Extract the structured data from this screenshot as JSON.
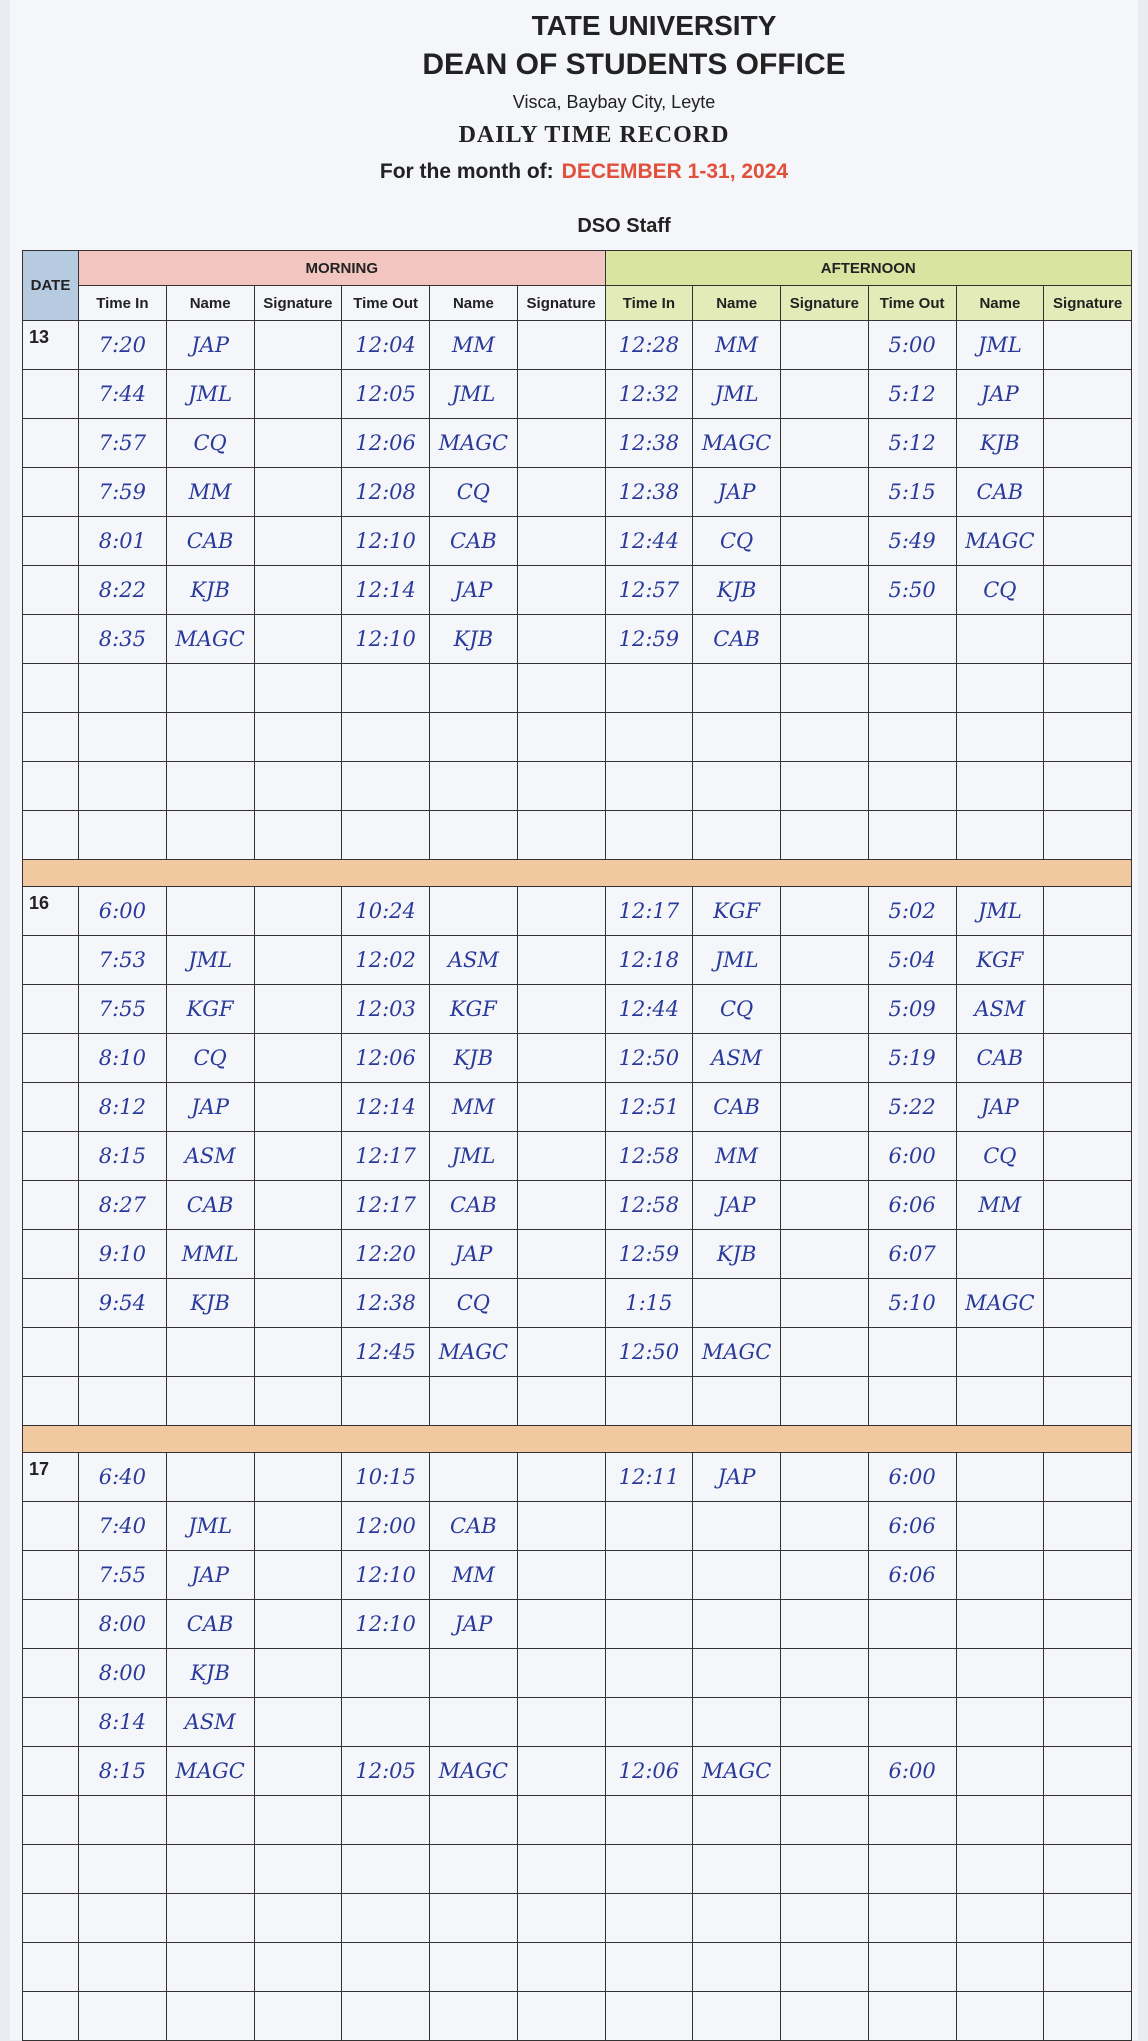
{
  "header": {
    "university": "TATE UNIVERSITY",
    "office": "DEAN OF STUDENTS OFFICE",
    "address": "Visca, Baybay City, Leyte",
    "title": "DAILY TIME RECORD",
    "month_label": "For the month of:",
    "month": "DECEMBER 1-31, 2024",
    "staff": "DSO Staff"
  },
  "table": {
    "date_header": "DATE",
    "morning": "MORNING",
    "afternoon": "AFTERNOON",
    "morning_columns": [
      "Time In",
      "Name",
      "Signature",
      "Time Out",
      "Name",
      "Signature"
    ],
    "afternoon_columns": [
      "Time In",
      "Name",
      "Signature",
      "Time Out",
      "Name",
      "Signature"
    ],
    "sections": [
      {
        "date": "13",
        "rows": [
          [
            "7:20",
            "JAP",
            "12:04",
            "MM",
            "12:28",
            "MM",
            "5:00",
            "JML"
          ],
          [
            "7:44",
            "JML",
            "12:05",
            "JML",
            "12:32",
            "JML",
            "5:12",
            "JAP"
          ],
          [
            "7:57",
            "CQ",
            "12:06",
            "MAGC",
            "12:38",
            "MAGC",
            "5:12",
            "KJB"
          ],
          [
            "7:59",
            "MM",
            "12:08",
            "CQ",
            "12:38",
            "JAP",
            "5:15",
            "CAB"
          ],
          [
            "8:01",
            "CAB",
            "12:10",
            "CAB",
            "12:44",
            "CQ",
            "5:49",
            "MAGC"
          ],
          [
            "8:22",
            "KJB",
            "12:14",
            "JAP",
            "12:57",
            "KJB",
            "5:50",
            "CQ"
          ],
          [
            "8:35",
            "MAGC",
            "12:10",
            "KJB",
            "12:59",
            "CAB",
            null,
            null
          ]
        ]
      },
      {
        "date": "16",
        "rows": [
          [
            "6:00",
            null,
            "10:24",
            null,
            "12:17",
            "KGF",
            "5:02",
            "JML"
          ],
          [
            "7:53",
            "JML",
            "12:02",
            "ASM",
            "12:18",
            "JML",
            "5:04",
            "KGF"
          ],
          [
            "7:55",
            "KGF",
            "12:03",
            "KGF",
            "12:44",
            "CQ",
            "5:09",
            "ASM"
          ],
          [
            "8:10",
            "CQ",
            "12:06",
            "KJB",
            "12:50",
            "ASM",
            "5:19",
            "CAB"
          ],
          [
            "8:12",
            "JAP",
            "12:14",
            "MM",
            "12:51",
            "CAB",
            "5:22",
            "JAP"
          ],
          [
            "8:15",
            "ASM",
            "12:17",
            "JML",
            "12:58",
            "MM",
            "6:00",
            "CQ"
          ],
          [
            "8:27",
            "CAB",
            "12:17",
            "CAB",
            "12:58",
            "JAP",
            "6:06",
            "MM"
          ],
          [
            "9:10",
            "MML",
            "12:20",
            "JAP",
            "12:59",
            "KJB",
            "6:07",
            null
          ],
          [
            "9:54",
            "KJB",
            "12:38",
            "CQ",
            "1:15",
            null,
            "5:10",
            "MAGC"
          ],
          [
            null,
            null,
            "12:45",
            "MAGC",
            "12:50",
            "MAGC",
            null,
            null
          ]
        ]
      },
      {
        "date": "17",
        "rows": [
          [
            "6:40",
            null,
            "10:15",
            null,
            "12:11",
            "JAP",
            "6:00",
            null
          ],
          [
            "7:40",
            "JML",
            "12:00",
            "CAB",
            null,
            null,
            "6:06",
            null
          ],
          [
            "7:55",
            "JAP",
            "12:10",
            "MM",
            null,
            null,
            "6:06",
            null
          ],
          [
            "8:00",
            "CAB",
            "12:10",
            "JAP",
            null,
            null,
            null,
            null
          ],
          [
            "8:00",
            "KJB",
            null,
            null,
            null,
            null,
            null,
            null
          ],
          [
            "8:14",
            "ASM",
            null,
            null,
            null,
            null,
            null,
            null
          ],
          [
            "8:15",
            "MAGC",
            "12:05",
            "MAGC",
            "12:06",
            "MAGC",
            "6:00",
            null
          ]
        ]
      }
    ]
  }
}
